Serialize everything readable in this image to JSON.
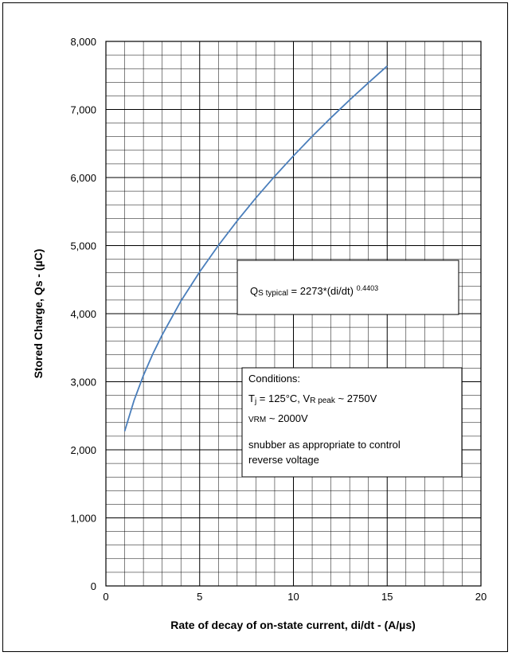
{
  "chart_data": {
    "type": "line",
    "xlabel": "Rate of decay of on-state current, di/dt - (A/µs)",
    "ylabel": "Stored Charge, Qs - (µC)",
    "xlim": [
      0,
      20
    ],
    "ylim": [
      0,
      8000
    ],
    "x_ticks": [
      "0",
      "5",
      "10",
      "15",
      "20"
    ],
    "y_ticks": [
      "0",
      "1,000",
      "2,000",
      "3,000",
      "4,000",
      "5,000",
      "6,000",
      "7,000",
      "8,000"
    ],
    "grid": true,
    "series": [
      {
        "color": "#4a7ebb",
        "x": [
          1,
          1.5,
          2,
          2.5,
          3,
          4,
          5,
          6,
          7,
          8,
          9,
          10,
          11,
          12,
          13,
          14,
          15
        ],
        "y": [
          2273,
          2724,
          3092,
          3408,
          3688,
          4186,
          4614,
          5003,
          5363,
          5701,
          6018,
          6318,
          6605,
          6878,
          7140,
          7393,
          7638
        ]
      }
    ],
    "annotations": {
      "formula": {
        "prefix": "Q",
        "sub": "S typical",
        "body": " = 2273*(di/dt) ",
        "sup": "0.4403"
      },
      "conditions": {
        "title": "Conditions:",
        "line1_a": "T",
        "line1_a_sub": "j",
        "line1_b": " = 125°C,  V",
        "line1_b_sub": "R peak",
        "line1_c": " ~ 2750V",
        "line2_a": "V",
        "line2_a_sub": "RM",
        "line2_b": " ~ 2000V",
        "line3": "snubber as appropriate to control",
        "line4": "reverse voltage"
      }
    }
  }
}
